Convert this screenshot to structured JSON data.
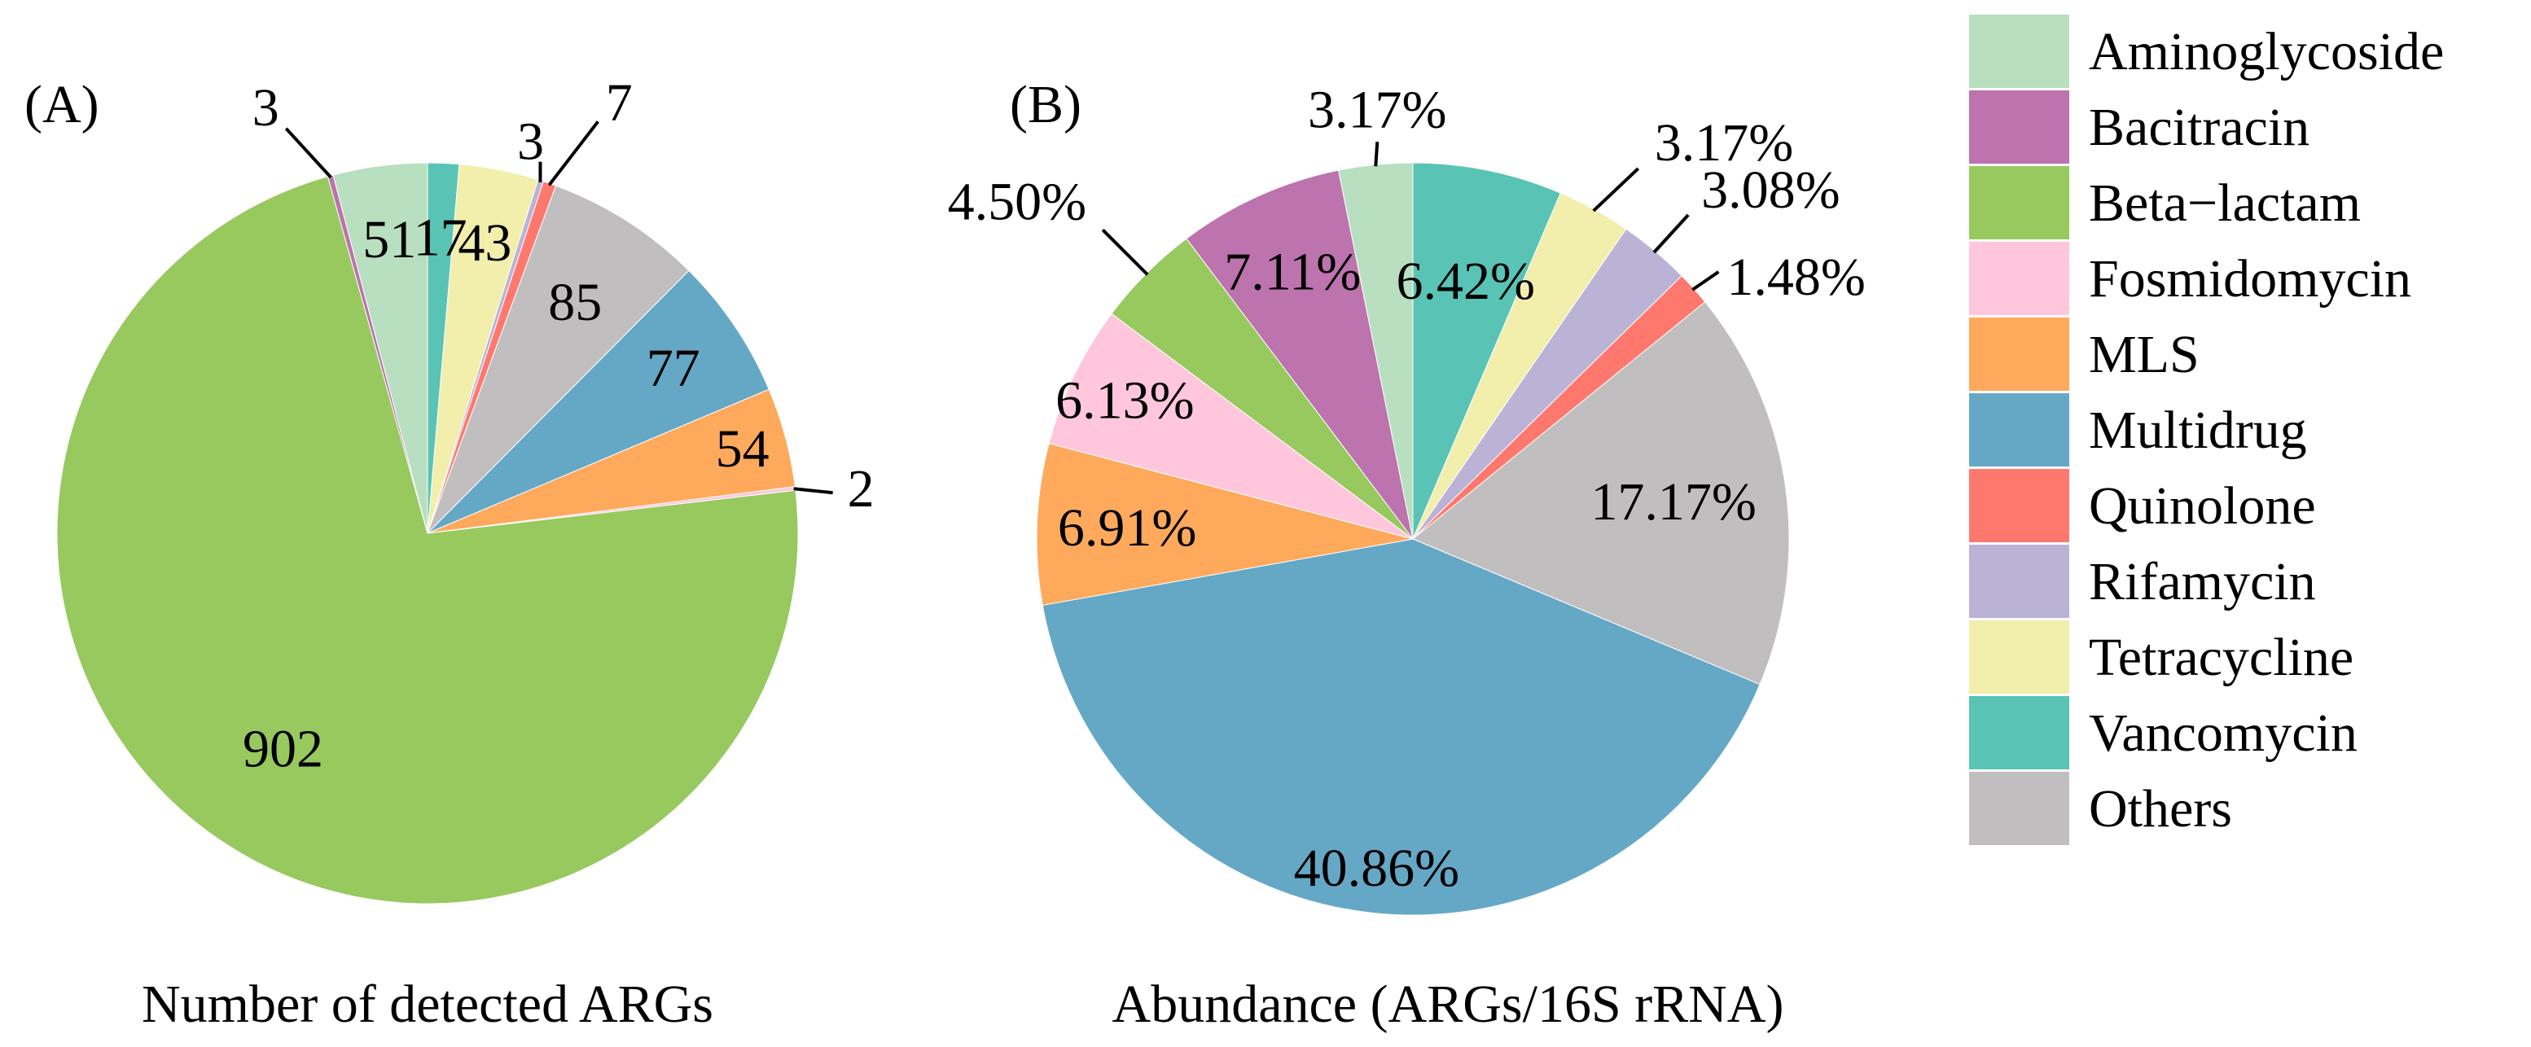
{
  "colors": {
    "Aminoglycoside": "#b8dfbf",
    "Bacitracin": "#bd73ad",
    "Beta-lactam": "#97c95f",
    "Fosmidomycin": "#ffc6dc",
    "MLS": "#ffa95c",
    "Multidrug": "#65a8c6",
    "Quinolone": "#ff786e",
    "Rifamycin": "#bab3d6",
    "Tetracycline": "#f2eeab",
    "Vancomycin": "#59c4b5",
    "Others": "#c0bebe"
  },
  "legend": {
    "items": [
      {
        "key": "Aminoglycoside",
        "label": "Aminoglycoside"
      },
      {
        "key": "Bacitracin",
        "label": "Bacitracin"
      },
      {
        "key": "Beta-lactam",
        "label": "Beta−lactam"
      },
      {
        "key": "Fosmidomycin",
        "label": "Fosmidomycin"
      },
      {
        "key": "MLS",
        "label": "MLS"
      },
      {
        "key": "Multidrug",
        "label": "Multidrug"
      },
      {
        "key": "Quinolone",
        "label": "Quinolone"
      },
      {
        "key": "Rifamycin",
        "label": "Rifamycin"
      },
      {
        "key": "Tetracycline",
        "label": "Tetracycline"
      },
      {
        "key": "Vancomycin",
        "label": "Vancomycin"
      },
      {
        "key": "Others",
        "label": "Others"
      }
    ]
  },
  "chart_data": [
    {
      "type": "pie",
      "panel": "(A)",
      "title": "Number of detected ARGs",
      "direction": "clockwise",
      "start": "top",
      "slices": [
        {
          "key": "Vancomycin",
          "value": 17,
          "label": "17"
        },
        {
          "key": "Tetracycline",
          "value": 43,
          "label": "43"
        },
        {
          "key": "Rifamycin",
          "value": 3,
          "label": "3"
        },
        {
          "key": "Quinolone",
          "value": 7,
          "label": "7"
        },
        {
          "key": "Others",
          "value": 85,
          "label": "85"
        },
        {
          "key": "Multidrug",
          "value": 77,
          "label": "77"
        },
        {
          "key": "MLS",
          "value": 54,
          "label": "54"
        },
        {
          "key": "Fosmidomycin",
          "value": 2,
          "label": "2"
        },
        {
          "key": "Beta-lactam",
          "value": 902,
          "label": "902"
        },
        {
          "key": "Bacitracin",
          "value": 3,
          "label": "3"
        },
        {
          "key": "Aminoglycoside",
          "value": 51,
          "label": "51"
        }
      ]
    },
    {
      "type": "pie",
      "panel": "(B)",
      "title": "Abundance (ARGs/16S rRNA)",
      "direction": "clockwise",
      "start": "top",
      "slices": [
        {
          "key": "Vancomycin",
          "value": 6.42,
          "label": "6.42%"
        },
        {
          "key": "Tetracycline",
          "value": 3.17,
          "label": "3.17%"
        },
        {
          "key": "Rifamycin",
          "value": 3.08,
          "label": "3.08%"
        },
        {
          "key": "Quinolone",
          "value": 1.48,
          "label": "1.48%"
        },
        {
          "key": "Others",
          "value": 17.17,
          "label": "17.17%"
        },
        {
          "key": "Multidrug",
          "value": 40.86,
          "label": "40.86%"
        },
        {
          "key": "MLS",
          "value": 6.91,
          "label": "6.91%"
        },
        {
          "key": "Fosmidomycin",
          "value": 6.13,
          "label": "6.13%"
        },
        {
          "key": "Beta-lactam",
          "value": 4.5,
          "label": "4.50%"
        },
        {
          "key": "Bacitracin",
          "value": 7.11,
          "label": "7.11%"
        },
        {
          "key": "Aminoglycoside",
          "value": 3.17,
          "label": "3.17%"
        }
      ]
    }
  ]
}
